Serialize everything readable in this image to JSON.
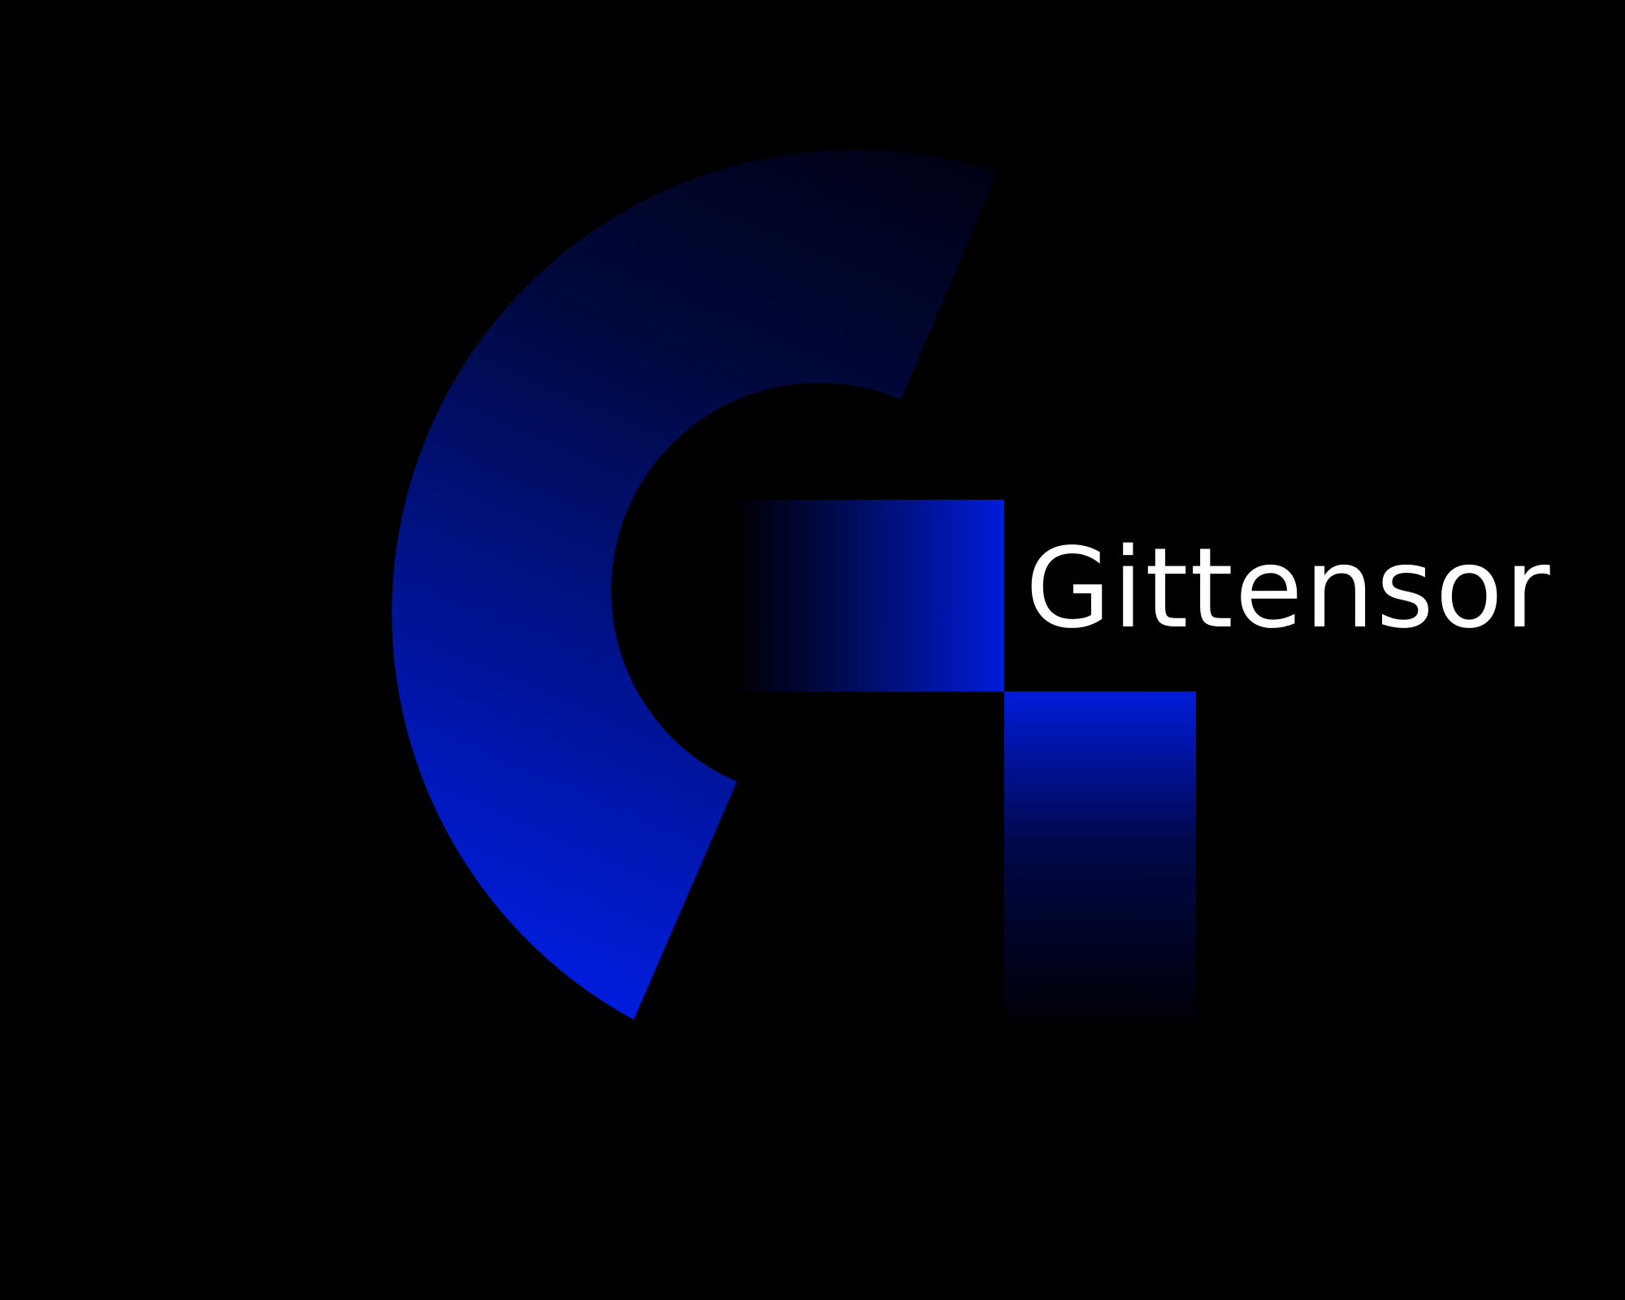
{
  "brand": {
    "name": "Gittensor",
    "text_color": "#FFFFFF",
    "background_color": "#000000",
    "accent_color": "#001CDB",
    "dark_accent_color": "#000010"
  },
  "logo": {
    "icon": "gittensor-g-logo-icon"
  }
}
